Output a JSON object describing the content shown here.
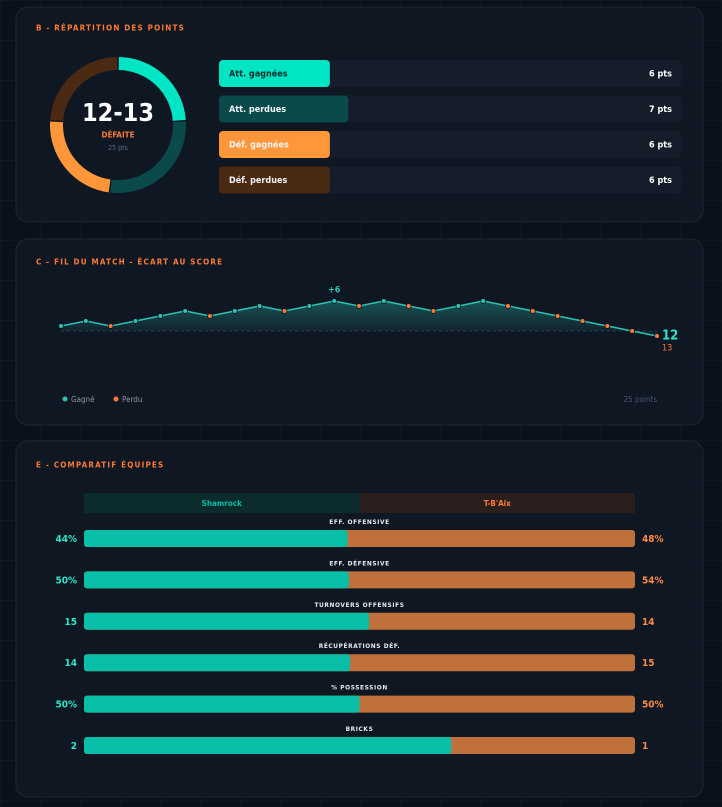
{
  "chart_data": [
    {
      "type": "donut",
      "title": "B - RÉPARTITION DES POINTS",
      "center_text": "12-13",
      "center_subtitle": "DÉFAITE",
      "center_note": "25 pts",
      "categories": [
        "Att. gagnées",
        "Att. perdues",
        "Déf. gagnées",
        "Déf. perdues"
      ],
      "values": [
        6,
        7,
        6,
        6
      ],
      "value_labels": [
        "6 pts",
        "7 pts",
        "6 pts",
        "6 pts"
      ],
      "colors": [
        "#00e5c4",
        "#0a4a4b",
        "#ff963a",
        "#4b2a14"
      ],
      "xlim": [
        0,
        25
      ]
    },
    {
      "type": "line",
      "title": "C - FIL DU MATCH - ÉCART AU SCORE",
      "x": [
        1,
        2,
        3,
        4,
        5,
        6,
        7,
        8,
        9,
        10,
        11,
        12,
        13,
        14,
        15,
        16,
        17,
        18,
        19,
        20,
        21,
        22,
        23,
        24,
        25
      ],
      "values": [
        1,
        2,
        1,
        2,
        3,
        4,
        3,
        4,
        5,
        4,
        5,
        6,
        5,
        6,
        5,
        4,
        5,
        6,
        5,
        4,
        3,
        2,
        1,
        0,
        -1
      ],
      "color": "#2bc4b4",
      "point_colors": [
        "#2bc4b4",
        "#2bc4b4",
        "#ff7a35",
        "#2bc4b4",
        "#2bc4b4",
        "#2bc4b4",
        "#ff7a35",
        "#2bc4b4",
        "#2bc4b4",
        "#ff7a35",
        "#2bc4b4",
        "#2bc4b4",
        "#ff7a35",
        "#2bc4b4",
        "#ff7a35",
        "#ff7a35",
        "#2bc4b4",
        "#2bc4b4",
        "#ff7a35",
        "#ff7a35",
        "#ff7a35",
        "#ff7a35",
        "#ff7a35",
        "#ff7a35",
        "#ff7a35"
      ],
      "xlim": [
        1,
        25
      ],
      "ylim": [
        -4,
        8
      ],
      "annotations": [
        {
          "text": "+6",
          "x": 12,
          "y": 6
        }
      ],
      "end_labels": [
        {
          "text": "12",
          "color": "#2ee6c8"
        },
        {
          "text": "13",
          "color": "#ff7a35"
        }
      ],
      "legend": [
        {
          "name": "Gagné",
          "color": "#2bc4b4"
        },
        {
          "name": "Perdu",
          "color": "#ff7a35"
        }
      ],
      "footnote": "25 points"
    },
    {
      "type": "comparison",
      "title": "E - COMPARATIF ÉQUIPES",
      "categories": [
        "EFF. OFFENSIVE",
        "EFF. DÉFENSIVE",
        "TURNOVERS OFFENSIFS",
        "RÉCUPÉRATIONS DÉF.",
        "% POSSESSION",
        "BRICKS"
      ],
      "series": [
        {
          "name": "Shamrock",
          "color": "#06bfa6",
          "values": [
            44,
            50,
            15,
            14,
            50,
            2
          ],
          "value_labels": [
            "44%",
            "50%",
            "15",
            "14",
            "50%",
            "2"
          ]
        },
        {
          "name": "T-B'Aix",
          "color": "#c0703a",
          "values": [
            48,
            54,
            14,
            15,
            50,
            1
          ],
          "value_labels": [
            "48%",
            "54%",
            "14",
            "15",
            "50%",
            "1"
          ]
        }
      ]
    }
  ]
}
